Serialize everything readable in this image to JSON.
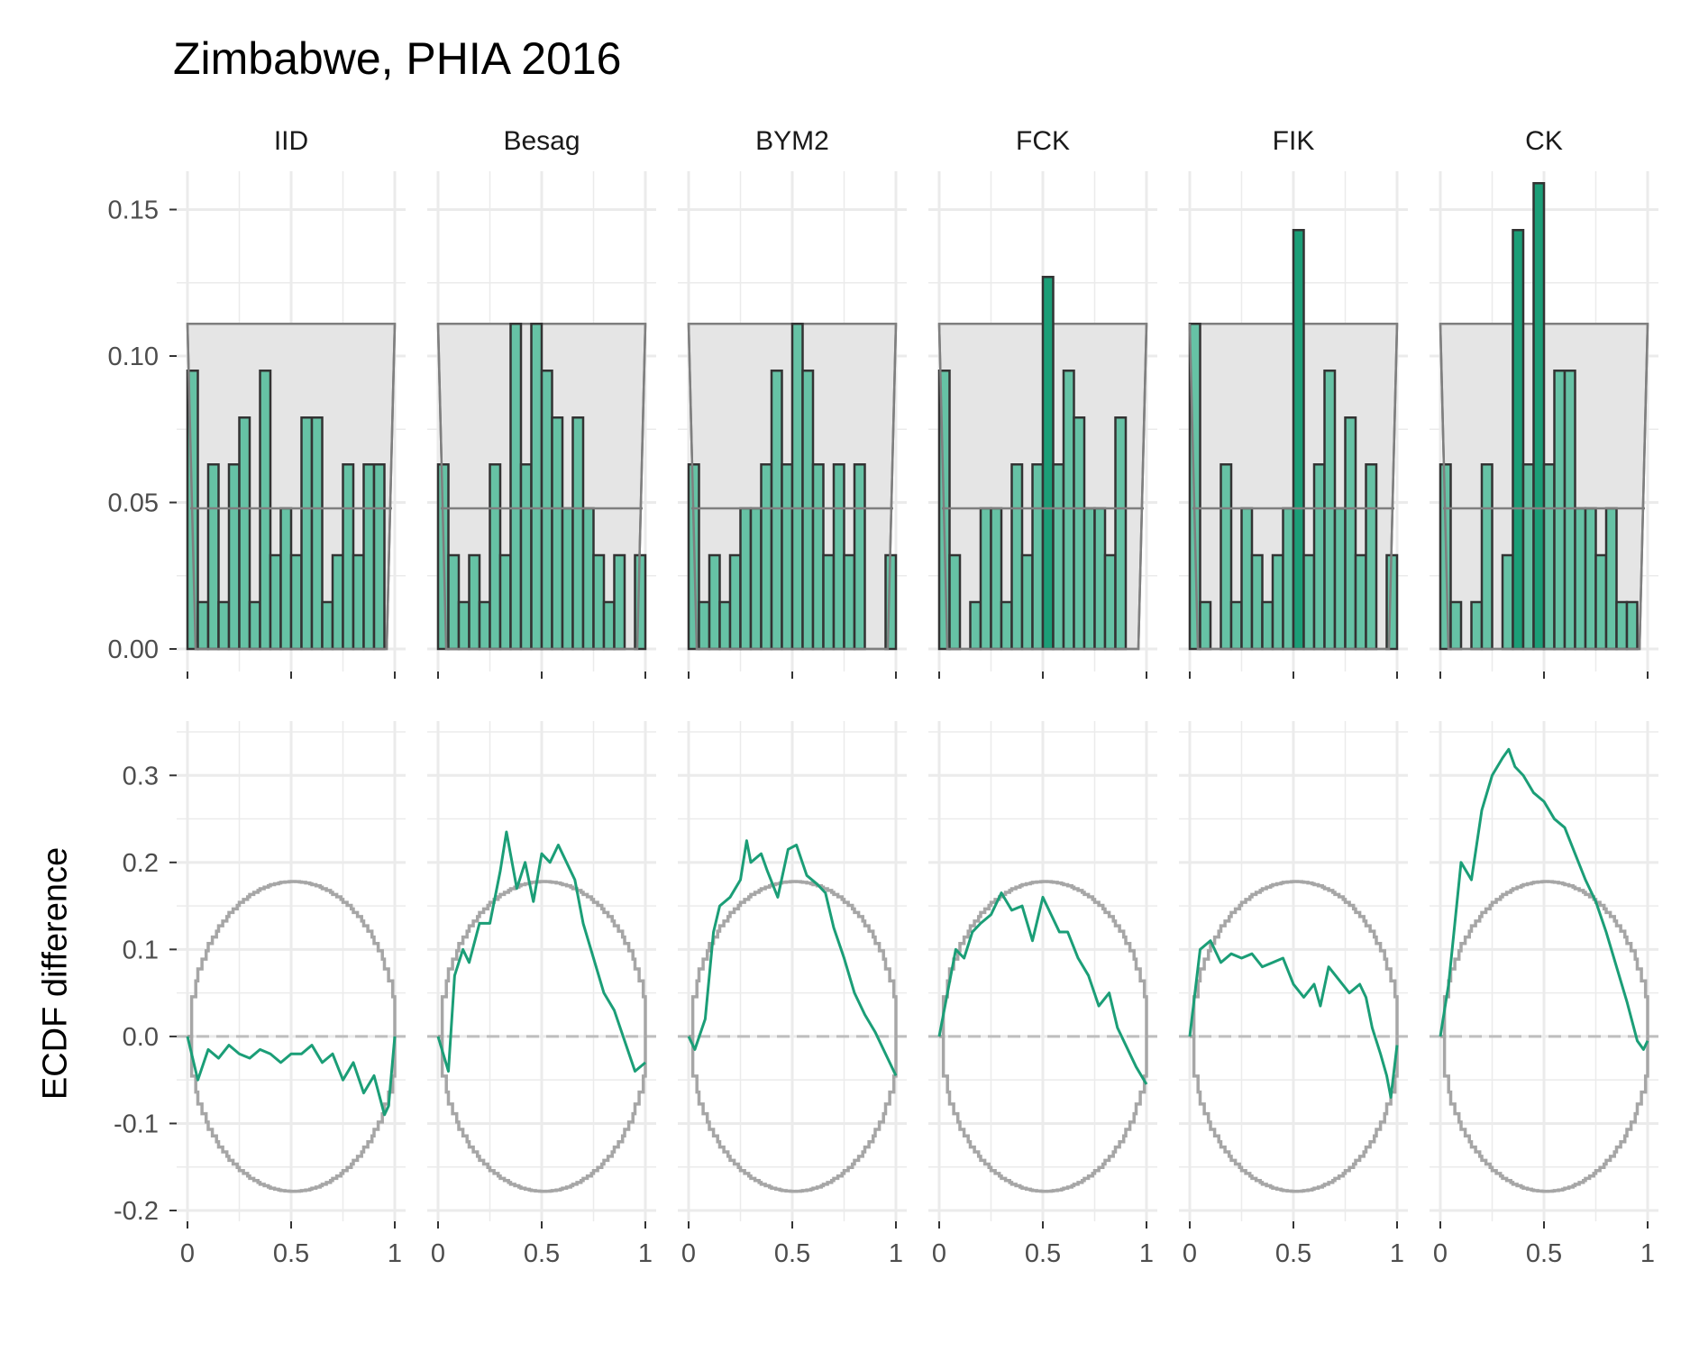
{
  "chart_data": {
    "type": "faceted-histogram-and-ecdf-difference",
    "title": "Zimbabwe, PHIA 2016",
    "panels": [
      "IID",
      "Besag",
      "BYM2",
      "FCK",
      "FIK",
      "CK"
    ],
    "colors": {
      "bar_fill": "#66C2A5",
      "bar_fill_highlight": "#1B9E77",
      "bar_outline": "#333333",
      "band_fill": "#E5E5E5",
      "band_outline": "#7F7F7F",
      "ecdf_line": "#1B9E77",
      "envelope": "#A6A6A6",
      "zero_line": "#BEBEBE",
      "grid": "#EBEBEB"
    },
    "histogram": {
      "bins": 20,
      "bin_width": 0.05,
      "ylim": [
        0,
        0.16
      ],
      "yticks": [
        0.0,
        0.05,
        0.1,
        0.15
      ],
      "ytick_labels": [
        "0.00",
        "0.05",
        "0.10",
        "0.15"
      ],
      "band": {
        "lower": 0.0,
        "upper": 0.111,
        "middle": 0.048
      },
      "series": [
        {
          "name": "IID",
          "values": [
            0.095,
            0.016,
            0.063,
            0.016,
            0.063,
            0.079,
            0.016,
            0.095,
            0.032,
            0.048,
            0.032,
            0.079,
            0.079,
            0.016,
            0.032,
            0.063,
            0.032,
            0.063,
            0.063,
            0.0
          ]
        },
        {
          "name": "Besag",
          "values": [
            0.063,
            0.032,
            0.016,
            0.032,
            0.016,
            0.063,
            0.032,
            0.111,
            0.063,
            0.111,
            0.095,
            0.079,
            0.048,
            0.079,
            0.048,
            0.032,
            0.016,
            0.032,
            0.0,
            0.032
          ]
        },
        {
          "name": "BYM2",
          "values": [
            0.063,
            0.016,
            0.032,
            0.016,
            0.032,
            0.048,
            0.048,
            0.063,
            0.095,
            0.063,
            0.111,
            0.095,
            0.063,
            0.032,
            0.063,
            0.032,
            0.063,
            0.0,
            0.0,
            0.032
          ]
        },
        {
          "name": "FCK",
          "values": [
            0.095,
            0.032,
            0.0,
            0.016,
            0.048,
            0.048,
            0.016,
            0.063,
            0.032,
            0.063,
            0.127,
            0.063,
            0.095,
            0.079,
            0.048,
            0.048,
            0.032,
            0.079,
            0.0,
            0.0
          ]
        },
        {
          "name": "FIK",
          "values": [
            0.111,
            0.016,
            0.0,
            0.063,
            0.016,
            0.048,
            0.032,
            0.016,
            0.032,
            0.048,
            0.143,
            0.032,
            0.063,
            0.095,
            0.048,
            0.079,
            0.032,
            0.063,
            0.0,
            0.032
          ]
        },
        {
          "name": "CK",
          "values": [
            0.063,
            0.016,
            0.0,
            0.016,
            0.063,
            0.0,
            0.032,
            0.143,
            0.063,
            0.159,
            0.063,
            0.095,
            0.095,
            0.048,
            0.048,
            0.032,
            0.048,
            0.016,
            0.016,
            0.0
          ]
        }
      ]
    },
    "ecdf_difference": {
      "ylabel": "ECDF difference",
      "ylim": [
        -0.2,
        0.35
      ],
      "yticks": [
        -0.2,
        -0.1,
        0.0,
        0.1,
        0.2,
        0.3
      ],
      "ytick_labels": [
        "-0.2",
        "-0.1",
        "0.0",
        "0.1",
        "0.2",
        "0.3"
      ],
      "xlim": [
        0,
        1
      ],
      "xticks": [
        0,
        0.5,
        1
      ],
      "xtick_labels": [
        "0",
        "0.5",
        "1"
      ],
      "envelope_halfwidth_max": 0.178,
      "series": [
        {
          "name": "IID",
          "x": [
            0,
            0.05,
            0.1,
            0.15,
            0.2,
            0.25,
            0.3,
            0.35,
            0.4,
            0.45,
            0.5,
            0.55,
            0.6,
            0.65,
            0.7,
            0.75,
            0.8,
            0.85,
            0.9,
            0.95,
            0.97,
            1.0
          ],
          "y": [
            0,
            -0.05,
            -0.015,
            -0.025,
            -0.01,
            -0.02,
            -0.025,
            -0.015,
            -0.02,
            -0.03,
            -0.02,
            -0.02,
            -0.01,
            -0.03,
            -0.02,
            -0.05,
            -0.03,
            -0.065,
            -0.045,
            -0.09,
            -0.08,
            0.0
          ]
        },
        {
          "name": "Besag",
          "x": [
            0,
            0.05,
            0.08,
            0.12,
            0.15,
            0.2,
            0.25,
            0.3,
            0.33,
            0.38,
            0.42,
            0.46,
            0.5,
            0.54,
            0.58,
            0.62,
            0.66,
            0.7,
            0.75,
            0.8,
            0.85,
            0.9,
            0.95,
            1.0
          ],
          "y": [
            0,
            -0.04,
            0.07,
            0.1,
            0.085,
            0.13,
            0.13,
            0.19,
            0.235,
            0.17,
            0.2,
            0.155,
            0.21,
            0.2,
            0.22,
            0.2,
            0.18,
            0.13,
            0.09,
            0.05,
            0.03,
            -0.005,
            -0.04,
            -0.03
          ]
        },
        {
          "name": "BYM2",
          "x": [
            0,
            0.03,
            0.08,
            0.12,
            0.15,
            0.2,
            0.25,
            0.28,
            0.3,
            0.35,
            0.38,
            0.43,
            0.48,
            0.52,
            0.57,
            0.62,
            0.66,
            0.7,
            0.75,
            0.8,
            0.85,
            0.9,
            0.95,
            1.0
          ],
          "y": [
            0,
            -0.015,
            0.02,
            0.12,
            0.15,
            0.16,
            0.18,
            0.225,
            0.2,
            0.21,
            0.19,
            0.16,
            0.215,
            0.22,
            0.185,
            0.175,
            0.165,
            0.125,
            0.09,
            0.05,
            0.025,
            0.005,
            -0.02,
            -0.045
          ]
        },
        {
          "name": "FCK",
          "x": [
            0,
            0.04,
            0.08,
            0.12,
            0.16,
            0.2,
            0.25,
            0.3,
            0.35,
            0.4,
            0.45,
            0.5,
            0.54,
            0.58,
            0.62,
            0.67,
            0.72,
            0.77,
            0.82,
            0.86,
            0.9,
            0.95,
            1.0
          ],
          "y": [
            0.0,
            0.05,
            0.1,
            0.09,
            0.12,
            0.13,
            0.14,
            0.165,
            0.145,
            0.15,
            0.11,
            0.16,
            0.14,
            0.12,
            0.12,
            0.09,
            0.07,
            0.035,
            0.05,
            0.01,
            -0.01,
            -0.035,
            -0.055
          ]
        },
        {
          "name": "FIK",
          "x": [
            0,
            0.05,
            0.1,
            0.15,
            0.2,
            0.25,
            0.3,
            0.35,
            0.4,
            0.45,
            0.5,
            0.55,
            0.6,
            0.63,
            0.67,
            0.72,
            0.77,
            0.82,
            0.85,
            0.88,
            0.92,
            0.95,
            0.97,
            1.0
          ],
          "y": [
            0,
            0.1,
            0.11,
            0.085,
            0.095,
            0.09,
            0.095,
            0.08,
            0.085,
            0.09,
            0.06,
            0.045,
            0.06,
            0.035,
            0.08,
            0.065,
            0.05,
            0.06,
            0.045,
            0.01,
            -0.02,
            -0.045,
            -0.07,
            -0.01
          ]
        },
        {
          "name": "CK",
          "x": [
            0,
            0.04,
            0.1,
            0.15,
            0.2,
            0.25,
            0.3,
            0.33,
            0.36,
            0.4,
            0.45,
            0.5,
            0.55,
            0.6,
            0.65,
            0.7,
            0.75,
            0.8,
            0.85,
            0.9,
            0.95,
            0.98,
            1.0
          ],
          "y": [
            0.0,
            0.06,
            0.2,
            0.18,
            0.26,
            0.3,
            0.32,
            0.33,
            0.31,
            0.3,
            0.28,
            0.27,
            0.25,
            0.24,
            0.21,
            0.18,
            0.155,
            0.12,
            0.08,
            0.04,
            -0.005,
            -0.015,
            -0.005
          ]
        }
      ]
    }
  }
}
